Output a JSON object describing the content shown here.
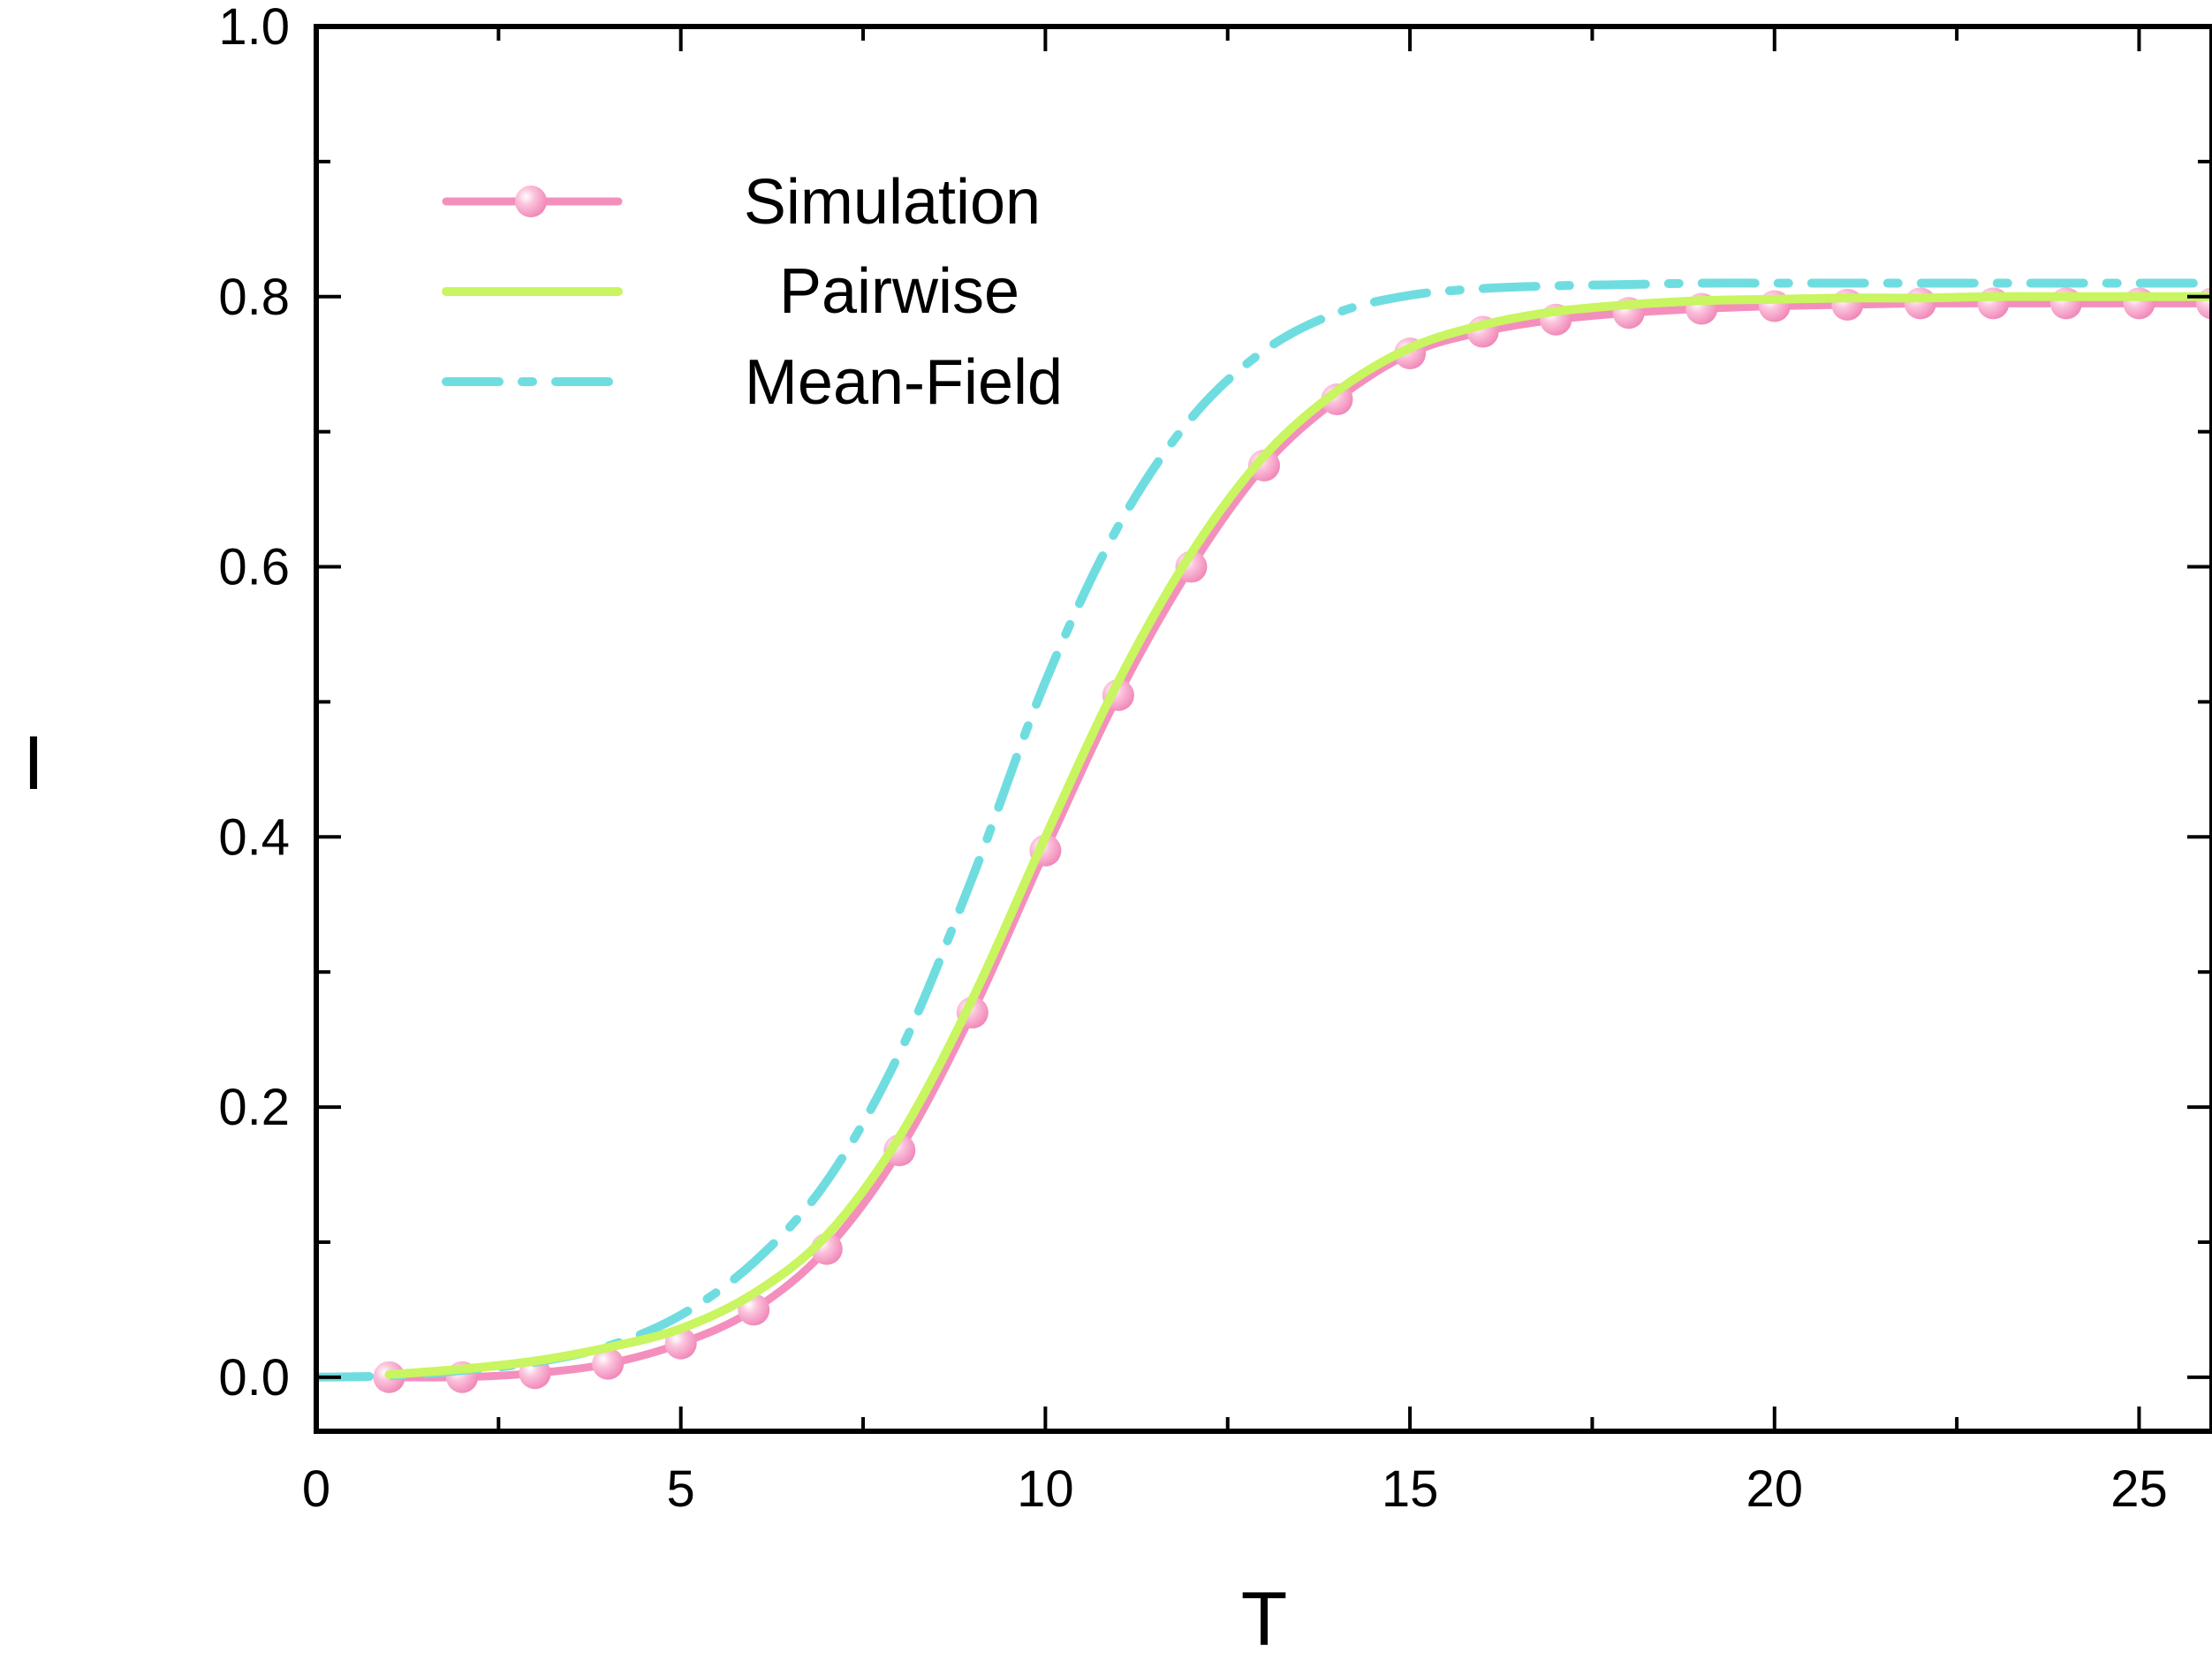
{
  "chart_data": {
    "type": "line",
    "xlabel": "T",
    "ylabel": "I",
    "xlim": [
      0,
      26
    ],
    "ylim": [
      -0.04,
      1.0
    ],
    "x_ticks": [
      "0",
      "5",
      "10",
      "15",
      "20",
      "25"
    ],
    "y_ticks": [
      "0.0",
      "0.2",
      "0.4",
      "0.6",
      "0.8",
      "1.0"
    ],
    "grid": false,
    "legend": "top-left",
    "series": [
      {
        "name": "Simulation",
        "color": "#f48fbd",
        "style": "line-markers",
        "x": [
          1,
          2,
          3,
          4,
          5,
          6,
          7,
          8,
          9,
          10,
          11,
          12,
          13,
          14,
          15,
          16,
          17,
          18,
          19,
          20,
          21,
          22,
          23,
          24,
          25,
          26
        ],
        "y": [
          0.0,
          0.0,
          0.003,
          0.01,
          0.025,
          0.05,
          0.095,
          0.168,
          0.27,
          0.39,
          0.505,
          0.6,
          0.675,
          0.724,
          0.758,
          0.774,
          0.783,
          0.788,
          0.791,
          0.793,
          0.794,
          0.795,
          0.795,
          0.795,
          0.795,
          0.795
        ]
      },
      {
        "name": "Pairwise",
        "color": "#c8f560",
        "style": "solid",
        "x": [
          1,
          2,
          3,
          4,
          5,
          6,
          7,
          8,
          9,
          10,
          11,
          12,
          13,
          14,
          15,
          16,
          17,
          18,
          19,
          20,
          21,
          22,
          23,
          24,
          25,
          26
        ],
        "y": [
          0.002,
          0.006,
          0.012,
          0.022,
          0.036,
          0.062,
          0.105,
          0.178,
          0.28,
          0.4,
          0.515,
          0.61,
          0.682,
          0.73,
          0.762,
          0.779,
          0.789,
          0.794,
          0.797,
          0.798,
          0.799,
          0.799,
          0.8,
          0.8,
          0.8,
          0.8
        ]
      },
      {
        "name": "Mean-Field",
        "color": "#6fdde0",
        "style": "dash-dot",
        "x": [
          0,
          1,
          2,
          3,
          4,
          5,
          6,
          7,
          8,
          9,
          10,
          11,
          12,
          13,
          14,
          15,
          16,
          17,
          18,
          19,
          20,
          21,
          22,
          23,
          24,
          25,
          26
        ],
        "y": [
          0.0,
          0.001,
          0.005,
          0.011,
          0.023,
          0.046,
          0.085,
          0.145,
          0.24,
          0.37,
          0.515,
          0.63,
          0.71,
          0.76,
          0.788,
          0.801,
          0.806,
          0.808,
          0.809,
          0.81,
          0.81,
          0.81,
          0.81,
          0.81,
          0.81,
          0.81,
          0.81
        ]
      }
    ]
  }
}
